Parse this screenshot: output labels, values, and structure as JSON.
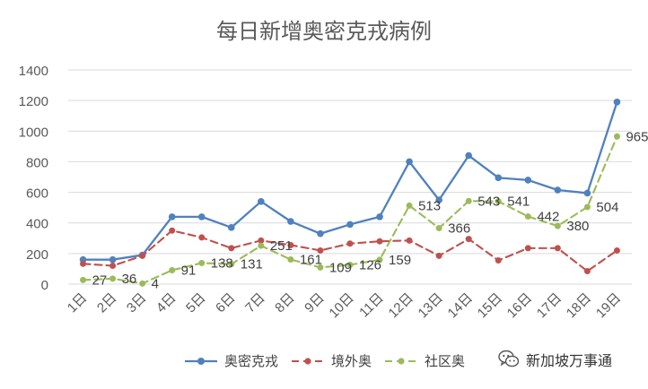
{
  "chart_data": {
    "type": "line",
    "title": "每日新增奥密克戎病例",
    "categories": [
      "1日",
      "2日",
      "3日",
      "4日",
      "5日",
      "6日",
      "7日",
      "8日",
      "9日",
      "10日",
      "11日",
      "12日",
      "13日",
      "14日",
      "15日",
      "16日",
      "17日",
      "18日",
      "19日"
    ],
    "ylim": [
      0,
      1400
    ],
    "yticks": [
      0,
      200,
      400,
      600,
      800,
      1000,
      1200,
      1400
    ],
    "grid": true,
    "legend_position": "bottom",
    "series": [
      {
        "name": "奥密克戎",
        "color": "#4F81BD",
        "style": "solid",
        "marker": "circle",
        "values": [
          160,
          160,
          190,
          440,
          440,
          370,
          540,
          410,
          330,
          390,
          440,
          800,
          550,
          840,
          695,
          680,
          615,
          595,
          1190
        ]
      },
      {
        "name": "境外奥",
        "color": "#C0504D",
        "style": "dashed",
        "marker": "circle",
        "values": [
          133,
          120,
          185,
          350,
          305,
          235,
          285,
          255,
          220,
          265,
          280,
          285,
          185,
          295,
          155,
          235,
          235,
          85,
          220
        ]
      },
      {
        "name": "社区奥",
        "color": "#9BBB59",
        "style": "dashed",
        "marker": "circle",
        "values": [
          27,
          36,
          4,
          91,
          138,
          131,
          251,
          161,
          109,
          126,
          159,
          513,
          366,
          543,
          541,
          442,
          380,
          504,
          965
        ],
        "data_labels": [
          "27",
          "36",
          "4",
          "91",
          "138",
          "131",
          "251",
          "161",
          "109",
          "126",
          "159",
          "513",
          "366",
          "543",
          "541",
          "442",
          "380",
          "504",
          "965"
        ]
      }
    ]
  },
  "watermark": {
    "text": "新加坡万事通",
    "icon": "wechat-icon"
  },
  "colors": {
    "grid": "#D9D9D9",
    "axis_text": "#595959",
    "title": "#595959"
  }
}
